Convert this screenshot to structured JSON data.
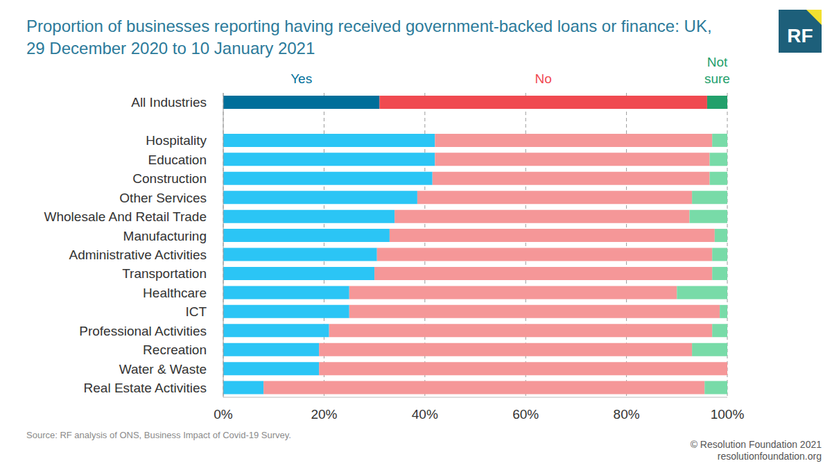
{
  "chart_data": {
    "type": "bar",
    "orientation": "horizontal",
    "stacked": true,
    "grid": true,
    "legend": "top",
    "title": [
      "Proportion of businesses reporting having received government-backed loans or finance: UK,",
      "29 December 2020 to 10 January 2021"
    ],
    "logo": "RF",
    "source": "Source: RF analysis of ONS, Business Impact of Covid-19 Survey.",
    "credit": [
      "© Resolution Foundation 2021",
      "resolutionfoundation.org"
    ],
    "categories": [
      "All Industries",
      null,
      "Hospitality",
      "Education",
      "Construction",
      "Other Services",
      "Wholesale And Retail Trade",
      "Manufacturing",
      "Administrative Activities",
      "Transportation",
      "Healthcare",
      "ICT",
      "Professional Activities",
      "Recreation",
      "Water & Waste",
      "Real Estate Activities"
    ],
    "series": [
      {
        "name": "Yes",
        "colors": [
          "#006f9a",
          null,
          "#2bc5f5",
          "#2bc5f5",
          "#2bc5f5",
          "#2bc5f5",
          "#2bc5f5",
          "#2bc5f5",
          "#2bc5f5",
          "#2bc5f5",
          "#2bc5f5",
          "#2bc5f5",
          "#2bc5f5",
          "#2bc5f5",
          "#2bc5f5",
          "#2bc5f5"
        ],
        "values": [
          31,
          null,
          42,
          42,
          41.5,
          38.5,
          34,
          33,
          30.5,
          30,
          25,
          25,
          21,
          19,
          19,
          8
        ]
      },
      {
        "name": "No",
        "colors": [
          "#f04a50",
          null,
          "#f59798",
          "#f59798",
          "#f59798",
          "#f59798",
          "#f59798",
          "#f59798",
          "#f59798",
          "#f59798",
          "#f59798",
          "#f59798",
          "#f59798",
          "#f59798",
          "#f59798",
          "#f59798"
        ],
        "values": [
          65,
          null,
          55,
          54.5,
          55,
          54.5,
          58.5,
          64.5,
          66.5,
          67,
          65,
          73.5,
          76,
          74,
          81,
          87.5
        ]
      },
      {
        "name": "Not sure",
        "colors": [
          "#22a06b",
          null,
          "#78dba8",
          "#78dba8",
          "#78dba8",
          "#78dba8",
          "#78dba8",
          "#78dba8",
          "#78dba8",
          "#78dba8",
          "#78dba8",
          "#78dba8",
          "#78dba8",
          "#78dba8",
          "#78dba8",
          "#78dba8"
        ],
        "values": [
          4,
          null,
          3,
          3.5,
          3.5,
          7,
          7.5,
          2.5,
          3,
          3,
          10,
          1.5,
          3,
          7,
          0,
          4.5
        ]
      }
    ],
    "xlim": [
      0,
      100
    ],
    "xticks": [
      {
        "value": 0,
        "label": "0%"
      },
      {
        "value": 20,
        "label": "20%"
      },
      {
        "value": 40,
        "label": "40%"
      },
      {
        "value": 60,
        "label": "60%"
      },
      {
        "value": 80,
        "label": "80%"
      },
      {
        "value": 100,
        "label": "100%"
      }
    ]
  }
}
